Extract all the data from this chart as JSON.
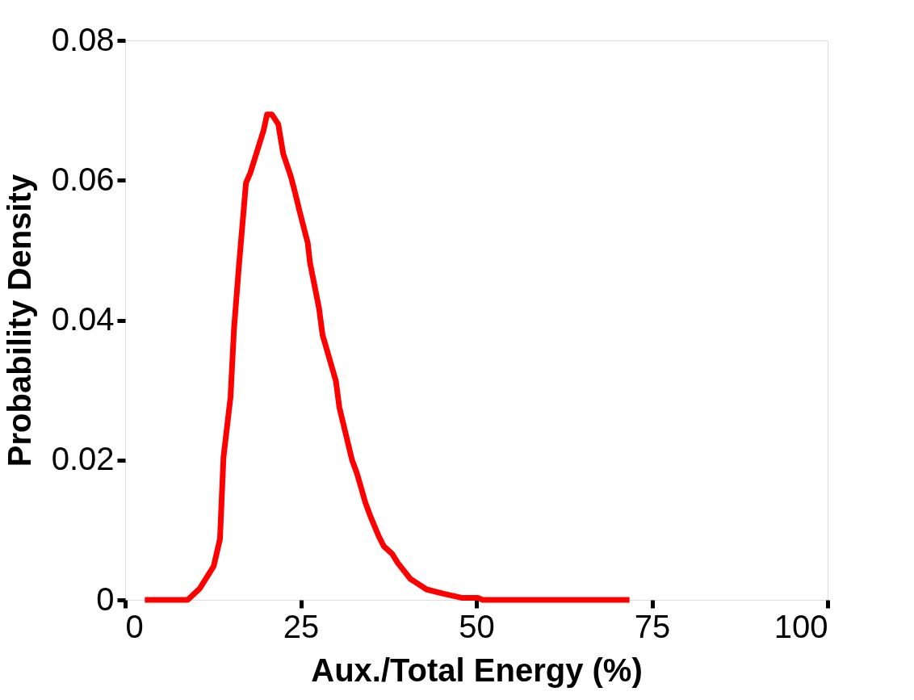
{
  "chart_data": {
    "type": "line",
    "xlabel": "Aux./Total Energy (%)",
    "ylabel": "Probability Density",
    "xlim": [
      0,
      100
    ],
    "xticks": [
      0,
      25,
      50,
      75,
      100
    ],
    "ylim": [
      0,
      0.08
    ],
    "yticks": [
      0,
      0.02,
      0.04,
      0.06,
      0.08
    ],
    "grid": false,
    "marker": "none",
    "line_style": "solid",
    "series": [
      {
        "color": "#ff0000",
        "x": [
          2.8,
          8.9,
          10.6,
          12.6,
          13.5,
          14.0,
          15.0,
          15.5,
          16.2,
          17.2,
          17.8,
          19.7,
          20.2,
          20.9,
          21.8,
          22.5,
          23.6,
          24.2,
          24.9,
          26.0,
          26.3,
          27.6,
          28.1,
          30.0,
          30.5,
          32.3,
          33.0,
          34.2,
          34.9,
          36.1,
          36.8,
          38.0,
          38.8,
          40.6,
          42.9,
          45.2,
          47.9,
          50.2,
          50.9,
          71.8
        ],
        "values": [
          0,
          0,
          0.0016,
          0.0048,
          0.0087,
          0.0204,
          0.029,
          0.0388,
          0.0478,
          0.0596,
          0.061,
          0.0671,
          0.0694,
          0.0694,
          0.068,
          0.0638,
          0.0605,
          0.0582,
          0.0553,
          0.051,
          0.0483,
          0.0417,
          0.0379,
          0.0313,
          0.0275,
          0.02,
          0.0181,
          0.0139,
          0.012,
          0.0091,
          0.0077,
          0.0066,
          0.0053,
          0.003,
          0.0015,
          0.0009,
          0.0003,
          0.0003,
          0,
          0
        ]
      }
    ]
  }
}
